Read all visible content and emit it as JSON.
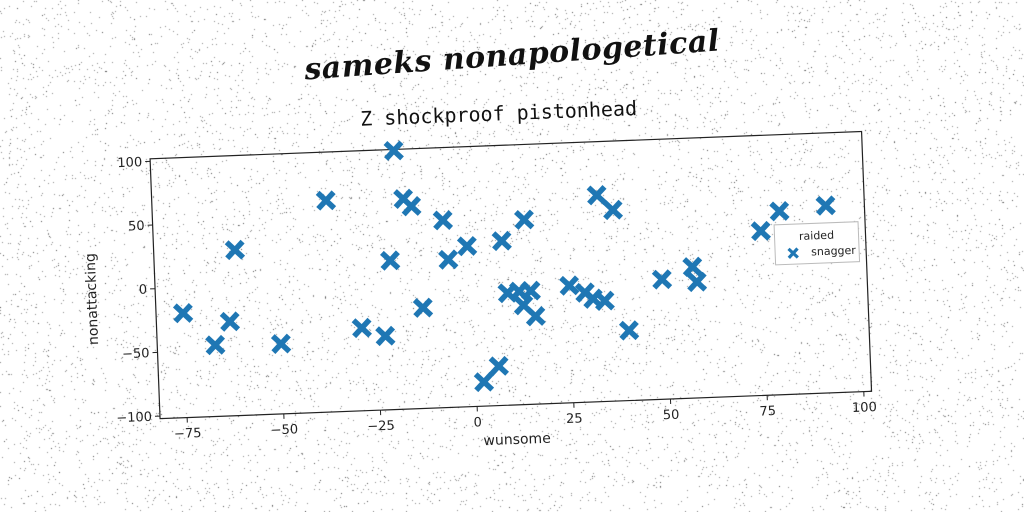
{
  "figure": {
    "suptitle": "sameks nonapologetical"
  },
  "chart_data": {
    "type": "scatter",
    "title": "Z shockproof pistonhead",
    "xlabel": "wunsome",
    "ylabel": "nonattacking",
    "xlim": [
      -82,
      102
    ],
    "ylim": [
      -102,
      102
    ],
    "xticks": [
      -75,
      -50,
      -25,
      0,
      25,
      50,
      75,
      100
    ],
    "yticks": [
      -100,
      -50,
      0,
      50,
      100
    ],
    "xtick_labels": [
      "−75",
      "−50",
      "−25",
      "0",
      "25",
      "50",
      "75",
      "100"
    ],
    "ytick_labels": [
      "−100",
      "−50",
      "0",
      "50",
      "100"
    ],
    "grid": false,
    "legend": {
      "title": "raided",
      "placement": "right"
    },
    "series": [
      {
        "name": "snagger",
        "color": "#1f77b4",
        "marker": "x-filled",
        "points": [
          [
            -75,
            -20
          ],
          [
            -67,
            -46
          ],
          [
            -63,
            -28
          ],
          [
            -61,
            28
          ],
          [
            -50,
            -47
          ],
          [
            -37,
            64
          ],
          [
            -29,
            -37
          ],
          [
            -23,
            -44
          ],
          [
            -21,
            15
          ],
          [
            -19,
            101
          ],
          [
            -17,
            63
          ],
          [
            -15,
            57
          ],
          [
            -13,
            -23
          ],
          [
            -7,
            45
          ],
          [
            -6,
            14
          ],
          [
            -1,
            24
          ],
          [
            2,
            -83
          ],
          [
            6,
            -71
          ],
          [
            8,
            27
          ],
          [
            9,
            -14
          ],
          [
            12,
            -13
          ],
          [
            13,
            -24
          ],
          [
            14,
            43
          ],
          [
            15,
            -13
          ],
          [
            16,
            -33
          ],
          [
            25,
            -10
          ],
          [
            29,
            -16
          ],
          [
            31,
            -21
          ],
          [
            33,
            60
          ],
          [
            34,
            -23
          ],
          [
            37,
            48
          ],
          [
            40,
            -47
          ],
          [
            49,
            -8
          ],
          [
            57,
            1
          ],
          [
            58,
            -11
          ],
          [
            75,
            27
          ],
          [
            80,
            42
          ],
          [
            92,
            45
          ]
        ]
      }
    ]
  }
}
